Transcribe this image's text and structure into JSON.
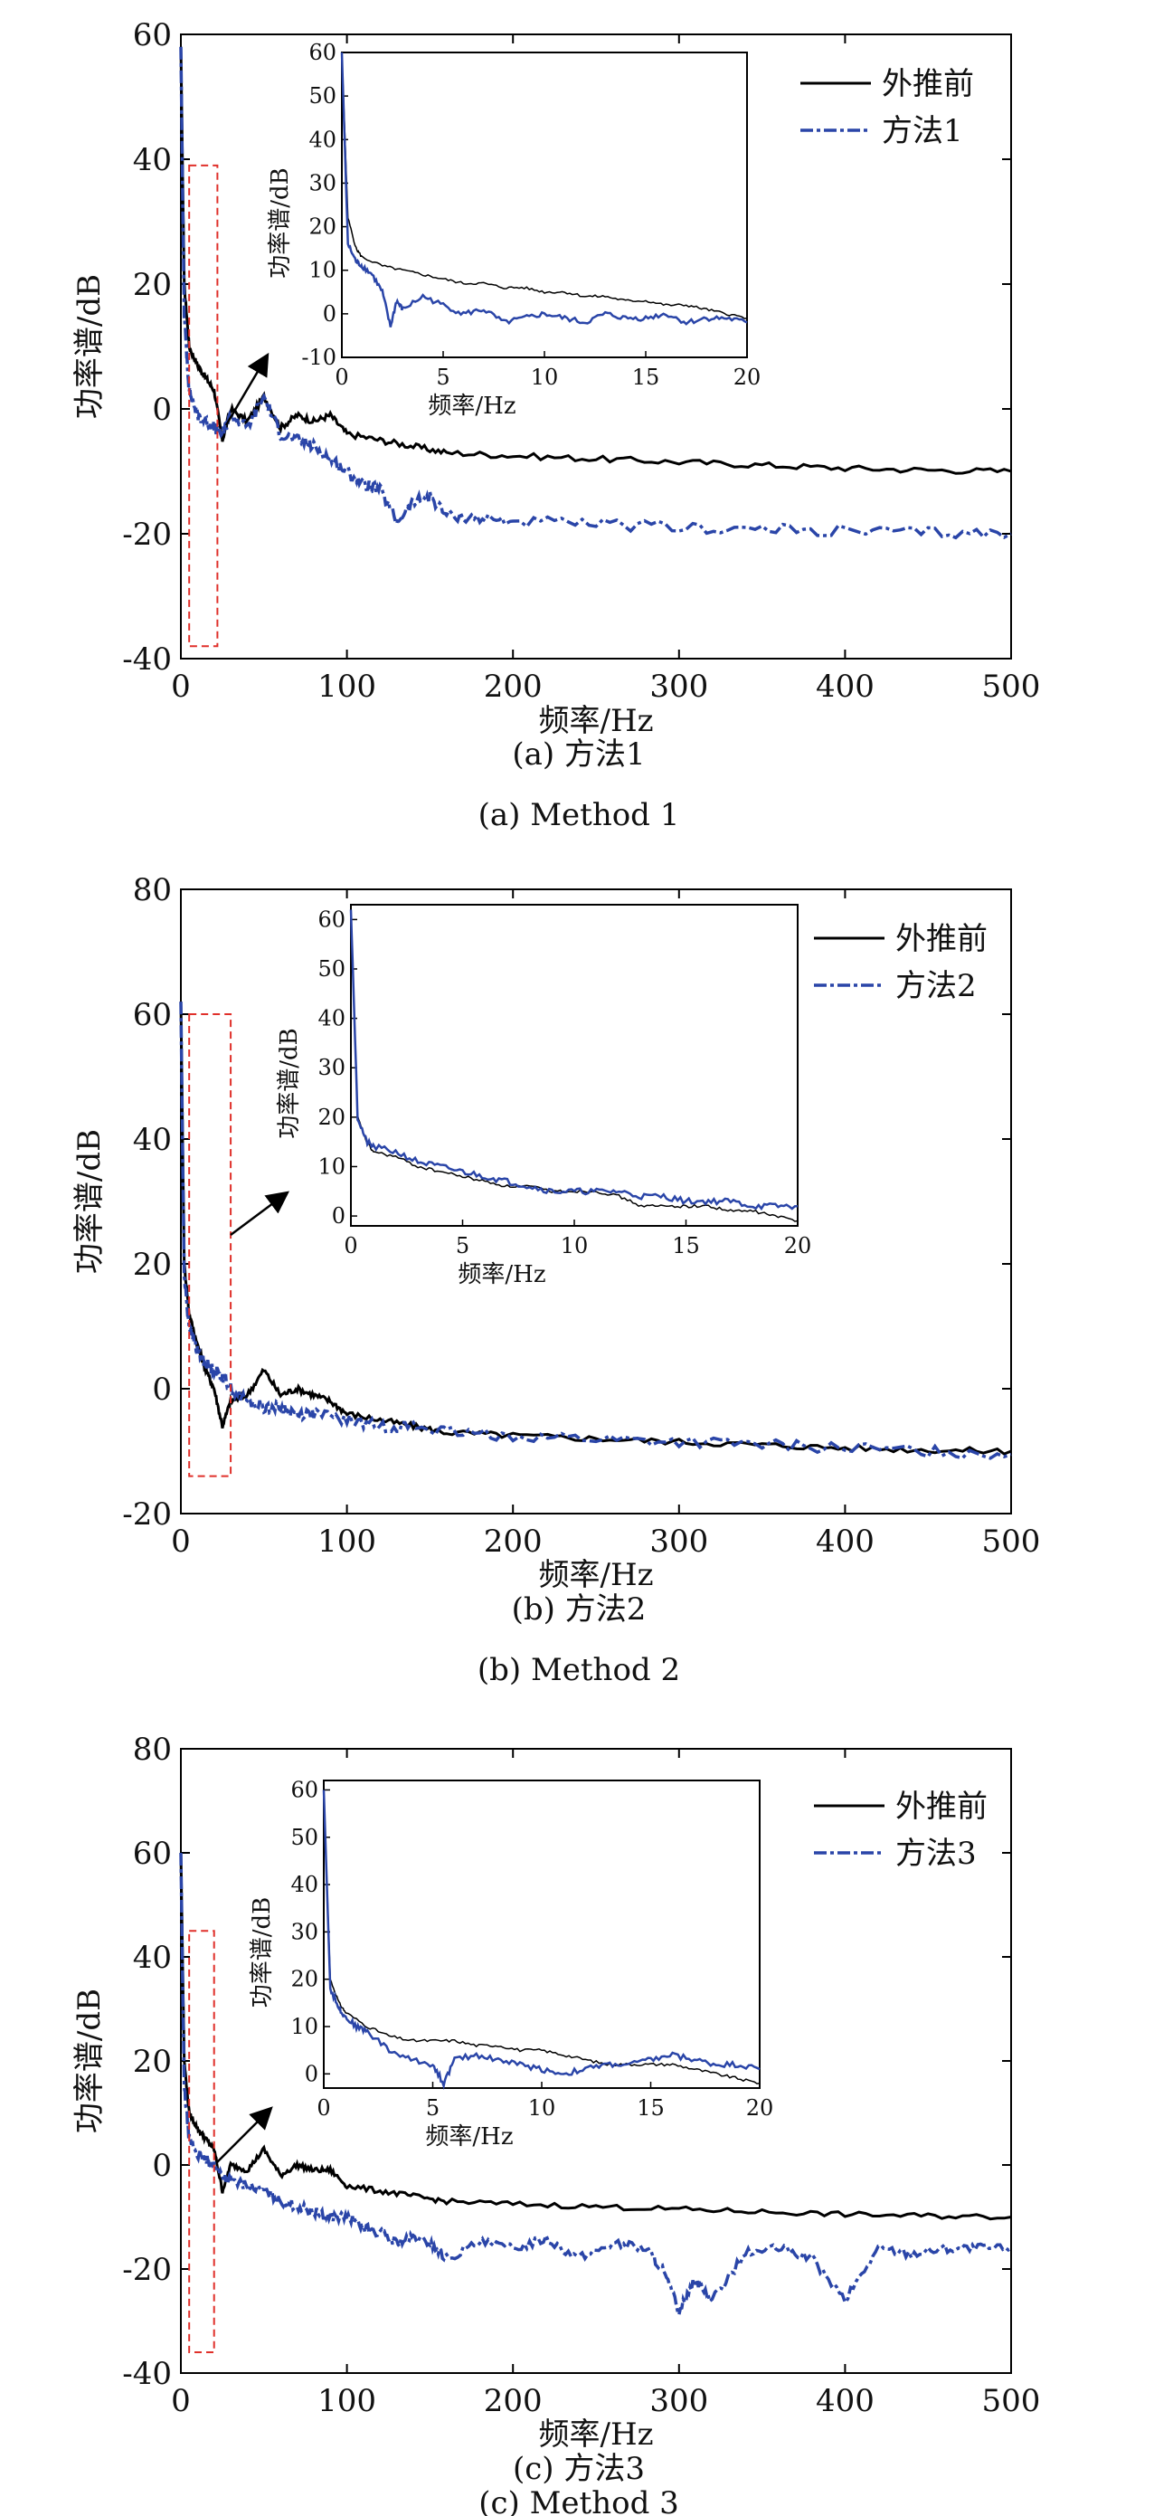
{
  "colors": {
    "before": "#000000",
    "method": "#2a45a8",
    "highlight": "#e0302a"
  },
  "chart_data": [
    {
      "type": "line",
      "xlabel": "频率/Hz",
      "ylabel": "功率谱/dB",
      "xlim": [
        0,
        500
      ],
      "ylim": [
        -40,
        60
      ],
      "xticks": [
        "0",
        "100",
        "200",
        "300",
        "400",
        "500"
      ],
      "yticks": [
        "-40",
        "-20",
        "0",
        "20",
        "40",
        "60"
      ],
      "caption_cn": "(a) 方法1",
      "caption_en": "(a) Method 1",
      "legend_position": "top-right",
      "series": [
        {
          "name": "外推前",
          "x": [
            0,
            2,
            5,
            10,
            15,
            20,
            25,
            30,
            40,
            50,
            60,
            70,
            80,
            90,
            100,
            120,
            140,
            160,
            200,
            250,
            300,
            350,
            400,
            450,
            500
          ],
          "y": [
            58,
            20,
            10,
            7,
            5,
            3,
            -5,
            0,
            -2,
            2,
            -3,
            -1,
            -2,
            -1,
            -4,
            -5,
            -6,
            -7,
            -7.5,
            -8,
            -8.5,
            -9,
            -9.5,
            -9.8,
            -10
          ]
        },
        {
          "name": "方法1",
          "x": [
            0,
            2,
            5,
            10,
            15,
            20,
            25,
            30,
            40,
            50,
            60,
            70,
            80,
            90,
            100,
            110,
            120,
            130,
            140,
            150,
            160,
            180,
            200,
            250,
            300,
            350,
            400,
            450,
            500
          ],
          "y": [
            58,
            15,
            3,
            -1,
            -2,
            -3,
            -4,
            -1,
            -3,
            2,
            -4,
            -5,
            -6,
            -8,
            -10,
            -12,
            -13,
            -18,
            -15,
            -14,
            -17,
            -17.5,
            -18,
            -18.5,
            -19,
            -19.3,
            -19.6,
            -19.8,
            -20
          ]
        }
      ],
      "highlight_box": {
        "x": [
          5,
          22
        ],
        "y": [
          -38,
          39
        ]
      },
      "inset": {
        "xlim": [
          0,
          20
        ],
        "ylim": [
          -10,
          60
        ],
        "xticks": [
          "0",
          "5",
          "10",
          "15",
          "20"
        ],
        "yticks": [
          "-10",
          "0",
          "10",
          "20",
          "30",
          "40",
          "50",
          "60"
        ],
        "xlabel": "频率/Hz",
        "ylabel": "功率谱/dB",
        "series": [
          {
            "x": [
              0,
              0.3,
              0.7,
              1,
              2,
              3,
              4,
              5,
              6,
              7,
              8,
              9,
              10,
              11,
              12,
              13,
              14,
              15,
              16,
              17,
              18,
              19,
              20
            ],
            "y": [
              60,
              22,
              15,
              13,
              11,
              10,
              9,
              8,
              7,
              7,
              6,
              6,
              5,
              5,
              4,
              4,
              3,
              3,
              2,
              2,
              1,
              0,
              -1
            ]
          },
          {
            "x": [
              0,
              0.3,
              0.7,
              1,
              1.5,
              2,
              2.4,
              2.7,
              3,
              4,
              5,
              6,
              7,
              8,
              9,
              10,
              11,
              12,
              13,
              14,
              15,
              16,
              17,
              18,
              19,
              20
            ],
            "y": [
              60,
              16,
              12,
              11,
              9,
              5,
              -3,
              3,
              1,
              4,
              2,
              0,
              1,
              -2,
              -1,
              0,
              -1,
              -2,
              0,
              -1,
              -1,
              0,
              -2,
              -1,
              -1,
              -2
            ]
          }
        ]
      }
    },
    {
      "type": "line",
      "xlabel": "频率/Hz",
      "ylabel": "功率谱/dB",
      "xlim": [
        0,
        500
      ],
      "ylim": [
        -20,
        80
      ],
      "xticks": [
        "0",
        "100",
        "200",
        "300",
        "400",
        "500"
      ],
      "yticks": [
        "-20",
        "0",
        "20",
        "40",
        "60",
        "80"
      ],
      "caption_cn": "(b) 方法2",
      "caption_en": "(b) Method 2",
      "legend_position": "top-right",
      "series": [
        {
          "name": "外推前",
          "x": [
            0,
            2,
            5,
            10,
            15,
            20,
            25,
            30,
            40,
            50,
            60,
            70,
            80,
            90,
            100,
            120,
            140,
            160,
            200,
            250,
            300,
            350,
            400,
            450,
            500
          ],
          "y": [
            62,
            20,
            12,
            7,
            3,
            0,
            -6,
            -2,
            -1,
            3,
            -1,
            0,
            -1,
            -2,
            -4,
            -5,
            -6,
            -7,
            -7.5,
            -8,
            -8.5,
            -9,
            -9.5,
            -9.8,
            -10
          ]
        },
        {
          "name": "方法2",
          "x": [
            0,
            2,
            5,
            10,
            15,
            20,
            25,
            30,
            40,
            50,
            60,
            70,
            80,
            100,
            120,
            140,
            160,
            200,
            250,
            300,
            350,
            400,
            450,
            500
          ],
          "y": [
            62,
            18,
            10,
            6,
            4,
            3,
            2,
            0,
            -2,
            -3,
            -3,
            -4,
            -4,
            -5,
            -6,
            -6,
            -7,
            -7.5,
            -8,
            -8.5,
            -9,
            -9.5,
            -10,
            -10.5
          ]
        }
      ],
      "highlight_box": {
        "x": [
          5,
          30
        ],
        "y": [
          -14,
          60
        ]
      },
      "inset": {
        "xlim": [
          0,
          20
        ],
        "ylim": [
          -2,
          63
        ],
        "xticks": [
          "0",
          "5",
          "10",
          "15",
          "20"
        ],
        "yticks": [
          "0",
          "10",
          "20",
          "30",
          "40",
          "50",
          "60"
        ],
        "xlabel": "频率/Hz",
        "ylabel": "功率谱/dB",
        "series": [
          {
            "x": [
              0,
              0.3,
              0.7,
              1,
              2,
              3,
              4,
              5,
              6,
              7,
              8,
              9,
              10,
              11,
              12,
              13,
              14,
              15,
              16,
              17,
              18,
              19,
              20
            ],
            "y": [
              62,
              20,
              15,
              13,
              12,
              10,
              9,
              8,
              7,
              6,
              6,
              5,
              5,
              5,
              4,
              2,
              2,
              2,
              2,
              1,
              1,
              0,
              -1
            ]
          },
          {
            "x": [
              0,
              0.3,
              0.7,
              1,
              2,
              3,
              4,
              5,
              6,
              7,
              8,
              9,
              10,
              11,
              12,
              13,
              14,
              15,
              16,
              17,
              18,
              19,
              20
            ],
            "y": [
              62,
              20,
              15,
              14,
              13,
              11,
              10,
              9,
              8,
              7,
              6,
              5,
              5,
              5,
              5,
              4,
              4,
              3,
              3,
              3,
              2,
              2,
              2
            ]
          }
        ]
      }
    },
    {
      "type": "line",
      "xlabel": "频率/Hz",
      "ylabel": "功率谱/dB",
      "xlim": [
        0,
        500
      ],
      "ylim": [
        -40,
        80
      ],
      "xticks": [
        "0",
        "100",
        "200",
        "300",
        "400",
        "500"
      ],
      "yticks": [
        "-40",
        "-20",
        "0",
        "20",
        "40",
        "60",
        "80"
      ],
      "caption_cn": "(c) 方法3",
      "caption_en": "(c) Method 3",
      "legend_position": "top-right",
      "series": [
        {
          "name": "外推前",
          "x": [
            0,
            2,
            5,
            10,
            15,
            20,
            25,
            30,
            40,
            50,
            60,
            70,
            80,
            90,
            100,
            120,
            140,
            160,
            200,
            250,
            300,
            350,
            400,
            450,
            500
          ],
          "y": [
            60,
            20,
            10,
            7,
            5,
            3,
            -5,
            0,
            -1,
            3,
            -2,
            0,
            -1,
            -1,
            -4,
            -5,
            -6,
            -7,
            -7.5,
            -8,
            -8.5,
            -9,
            -9.5,
            -9.8,
            -10
          ]
        },
        {
          "name": "方法3",
          "x": [
            0,
            2,
            5,
            10,
            15,
            20,
            25,
            30,
            40,
            50,
            60,
            70,
            80,
            90,
            100,
            110,
            120,
            130,
            140,
            150,
            160,
            180,
            200,
            220,
            240,
            260,
            280,
            290,
            300,
            310,
            320,
            340,
            360,
            380,
            400,
            420,
            440,
            460,
            480,
            500
          ],
          "y": [
            60,
            15,
            5,
            2,
            1,
            0,
            -2,
            -3,
            -4,
            -5,
            -7,
            -8,
            -9,
            -10,
            -10,
            -12,
            -13,
            -15,
            -14,
            -15,
            -18,
            -15,
            -16,
            -14,
            -18,
            -15,
            -16,
            -20,
            -28,
            -22,
            -26,
            -17,
            -16,
            -18,
            -26,
            -16,
            -17,
            -16,
            -16,
            -16
          ]
        }
      ],
      "highlight_box": {
        "x": [
          5,
          20
        ],
        "y": [
          -36,
          45
        ]
      },
      "inset": {
        "xlim": [
          0,
          20
        ],
        "ylim": [
          -3,
          62
        ],
        "xticks": [
          "0",
          "5",
          "10",
          "15",
          "20"
        ],
        "yticks": [
          "0",
          "10",
          "20",
          "30",
          "40",
          "50",
          "60"
        ],
        "xlabel": "频率/Hz",
        "ylabel": "功率谱/dB",
        "series": [
          {
            "x": [
              0,
              0.3,
              0.7,
              1,
              2,
              3,
              4,
              5,
              6,
              7,
              8,
              9,
              10,
              11,
              12,
              13,
              14,
              15,
              16,
              17,
              18,
              19,
              20
            ],
            "y": [
              60,
              20,
              15,
              13,
              10,
              8,
              7,
              7,
              7,
              6,
              6,
              5,
              5,
              4,
              3,
              2,
              2,
              2,
              2,
              1,
              0,
              -1,
              -2
            ]
          },
          {
            "x": [
              0,
              0.3,
              0.7,
              1,
              1.5,
              2,
              3,
              4,
              5,
              5.5,
              6,
              7,
              8,
              9,
              10,
              11,
              12,
              13,
              14,
              15,
              16,
              17,
              18,
              19,
              20
            ],
            "y": [
              60,
              18,
              14,
              12,
              10,
              9,
              5,
              3,
              2,
              -2,
              3,
              4,
              3,
              2,
              1,
              0,
              1,
              2,
              2,
              3,
              4,
              3,
              2,
              2,
              1
            ]
          }
        ]
      }
    }
  ]
}
